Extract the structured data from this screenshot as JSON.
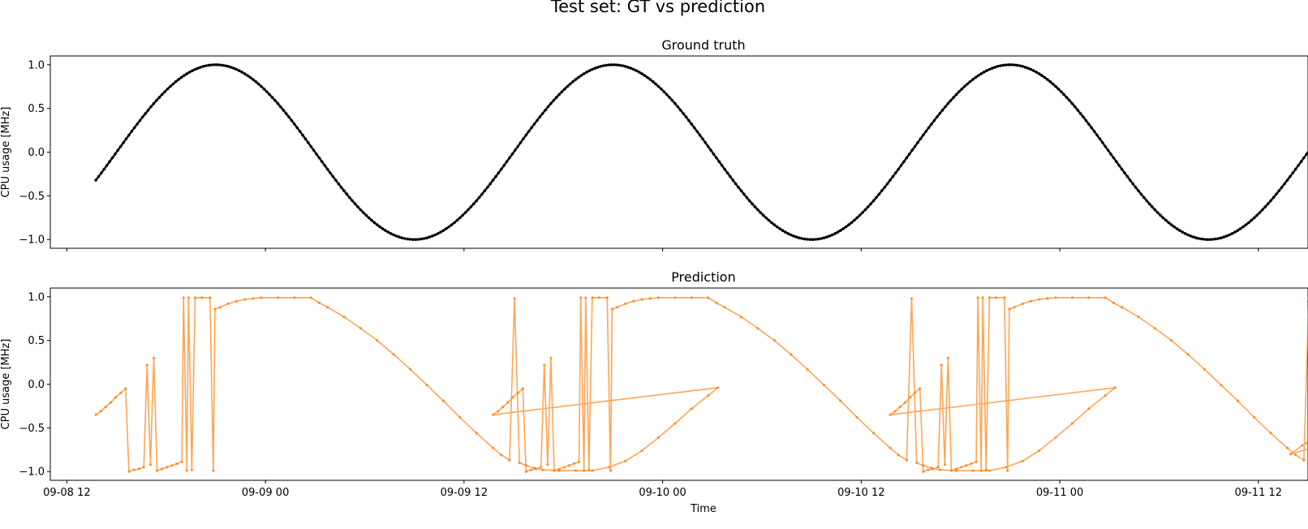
{
  "page": {
    "title": "Test set: GT vs prediction"
  },
  "colors": {
    "ground_truth": "#000000",
    "prediction": "#ff7f0e",
    "axes": "#000000"
  },
  "chart_data": [
    {
      "type": "line",
      "title": "Ground truth",
      "xlabel": "",
      "ylabel": "CPU usage [MHz]",
      "ylim": [
        -1.1,
        1.1
      ],
      "y_ticks": [
        -1.0,
        -0.5,
        0.0,
        0.5,
        1.0
      ],
      "y_tick_labels": [
        "−1.0",
        "−0.5",
        "0.0",
        "0.5",
        "1.0"
      ],
      "x_ticks": [
        "09-08 12",
        "09-09 00",
        "09-09 12",
        "09-10 00",
        "09-10 12",
        "09-11 00",
        "09-11 12"
      ],
      "x_tick_labels_shown": false,
      "x_range": [
        "2022-09-08 11:00",
        "2022-09-11 15:00"
      ],
      "grid": false,
      "series": [
        {
          "start": "2022-09-08 13:45",
          "step_minutes": 10,
          "count": 442,
          "formula": "sin(2*pi*(t - 2022-09-08 15:00)/24h)",
          "marker": "dot",
          "color": "#000000"
        }
      ]
    },
    {
      "type": "line",
      "title": "Prediction",
      "xlabel": "Time",
      "ylabel": "CPU usage [MHz]",
      "ylim": [
        -1.1,
        1.1
      ],
      "y_ticks": [
        -1.0,
        -0.5,
        0.0,
        0.5,
        1.0
      ],
      "y_tick_labels": [
        "−1.0",
        "−0.5",
        "0.0",
        "0.5",
        "1.0"
      ],
      "x_ticks": [
        "09-08 12",
        "09-09 00",
        "09-09 12",
        "09-10 00",
        "09-10 12",
        "09-11 00",
        "09-11 12"
      ],
      "x_tick_labels_shown": true,
      "x_range": [
        "2022-09-08 11:00",
        "2022-09-11 15:00"
      ],
      "grid": false,
      "series": [
        {
          "marker": "dot",
          "color": "#ff7f0e",
          "period_hours": 24,
          "repeats": 3,
          "points_hours_from_start": [
            [
              0.0,
              -0.35
            ],
            [
              0.3,
              -0.31
            ],
            [
              0.6,
              -0.26
            ],
            [
              0.9,
              -0.21
            ],
            [
              1.2,
              -0.15
            ],
            [
              1.5,
              -0.1
            ],
            [
              1.8,
              -0.05
            ],
            [
              2.0,
              -1.0
            ],
            [
              2.3,
              -0.98
            ],
            [
              2.6,
              -0.97
            ],
            [
              2.9,
              -0.95
            ],
            [
              3.1,
              0.22
            ],
            [
              3.3,
              -0.92
            ],
            [
              3.5,
              0.3
            ],
            [
              3.7,
              -0.99
            ],
            [
              4.0,
              -0.97
            ],
            [
              4.3,
              -0.95
            ],
            [
              4.6,
              -0.93
            ],
            [
              4.9,
              -0.91
            ],
            [
              5.2,
              -0.89
            ],
            [
              5.3,
              0.99
            ],
            [
              5.5,
              -0.99
            ],
            [
              5.6,
              0.99
            ],
            [
              5.8,
              -0.98
            ],
            [
              6.0,
              0.99
            ],
            [
              6.4,
              0.99
            ],
            [
              6.9,
              0.99
            ],
            [
              7.1,
              -0.99
            ],
            [
              7.2,
              0.86
            ],
            [
              7.5,
              0.88
            ],
            [
              8.0,
              0.92
            ],
            [
              8.5,
              0.95
            ],
            [
              9.0,
              0.97
            ],
            [
              9.5,
              0.98
            ],
            [
              10.0,
              0.99
            ],
            [
              11.0,
              0.99
            ],
            [
              12.0,
              0.99
            ],
            [
              13.0,
              0.99
            ],
            [
              13.5,
              0.93
            ],
            [
              14.0,
              0.88
            ],
            [
              15.0,
              0.77
            ],
            [
              16.0,
              0.64
            ],
            [
              17.0,
              0.5
            ],
            [
              18.0,
              0.34
            ],
            [
              19.0,
              0.17
            ],
            [
              20.0,
              -0.01
            ],
            [
              21.0,
              -0.19
            ],
            [
              22.0,
              -0.38
            ],
            [
              23.0,
              -0.56
            ],
            [
              24.0,
              -0.73
            ],
            [
              24.5,
              -0.81
            ],
            [
              25.0,
              -0.87
            ],
            [
              25.3,
              0.98
            ],
            [
              25.6,
              -0.9
            ],
            [
              26.0,
              -0.93
            ],
            [
              26.5,
              -0.96
            ],
            [
              27.0,
              -0.98
            ],
            [
              28.0,
              -0.99
            ],
            [
              29.0,
              -0.99
            ],
            [
              30.0,
              -0.99
            ],
            [
              31.0,
              -0.95
            ],
            [
              32.0,
              -0.88
            ],
            [
              33.0,
              -0.76
            ],
            [
              34.0,
              -0.61
            ],
            [
              35.0,
              -0.45
            ],
            [
              36.0,
              -0.28
            ],
            [
              37.0,
              -0.13
            ],
            [
              37.6,
              -0.04
            ]
          ]
        }
      ]
    }
  ]
}
